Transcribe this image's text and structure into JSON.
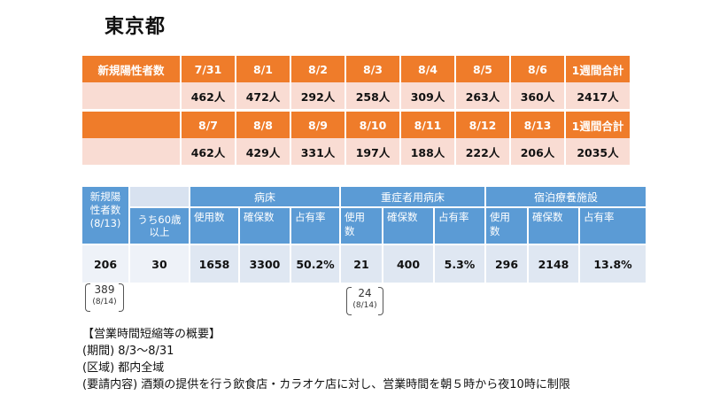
{
  "title": "東京都",
  "weekly": {
    "label": "新規陽性者数",
    "total_label": "1週間合計",
    "week1": {
      "dates": [
        "7/31",
        "8/1",
        "8/2",
        "8/3",
        "8/4",
        "8/5",
        "8/6"
      ],
      "values": [
        "462人",
        "472人",
        "292人",
        "258人",
        "309人",
        "263人",
        "360人"
      ],
      "total": "2417人"
    },
    "week2": {
      "dates": [
        "8/7",
        "8/8",
        "8/9",
        "8/10",
        "8/11",
        "8/12",
        "8/13"
      ],
      "values": [
        "462人",
        "429人",
        "331人",
        "197人",
        "188人",
        "222人",
        "206人"
      ],
      "total": "2035人"
    }
  },
  "beds": {
    "new_pos_label": [
      "新規陽",
      "性者数",
      "(8/13)"
    ],
    "over60_label": [
      "うち60歳",
      "以上"
    ],
    "groups": [
      "病床",
      "重症者用病床",
      "宿泊療養施設"
    ],
    "sub": [
      [
        "使用数",
        "確保数",
        "占有率"
      ],
      [
        "使用\n数",
        "確保数",
        "占有率"
      ],
      [
        "使用\n数",
        "確保数",
        "占有率"
      ]
    ],
    "values": {
      "new_pos": "206",
      "over60": "30",
      "g1": [
        "1658",
        "3300",
        "50.2%"
      ],
      "g2": [
        "21",
        "400",
        "5.3%"
      ],
      "g3": [
        "296",
        "2148",
        "13.8%"
      ]
    }
  },
  "brackets": [
    {
      "value": "389",
      "date": "(8/14)"
    },
    {
      "value": "24",
      "date": "(8/14)"
    }
  ],
  "notes": {
    "heading": "【営業時間短縮等の概要】",
    "period": "(期間)  8/3～8/31",
    "area": "(区域)  都内全域",
    "request": "(要請内容) 酒類の提供を行う飲食店・カラオケ店に対し、営業時間を朝５時から夜10時に制限"
  },
  "colors": {
    "orange": "#ef7c2a",
    "pink": "#f9dcd3",
    "blue": "#5b9bd5",
    "lightblue": "#dfe7f2"
  }
}
